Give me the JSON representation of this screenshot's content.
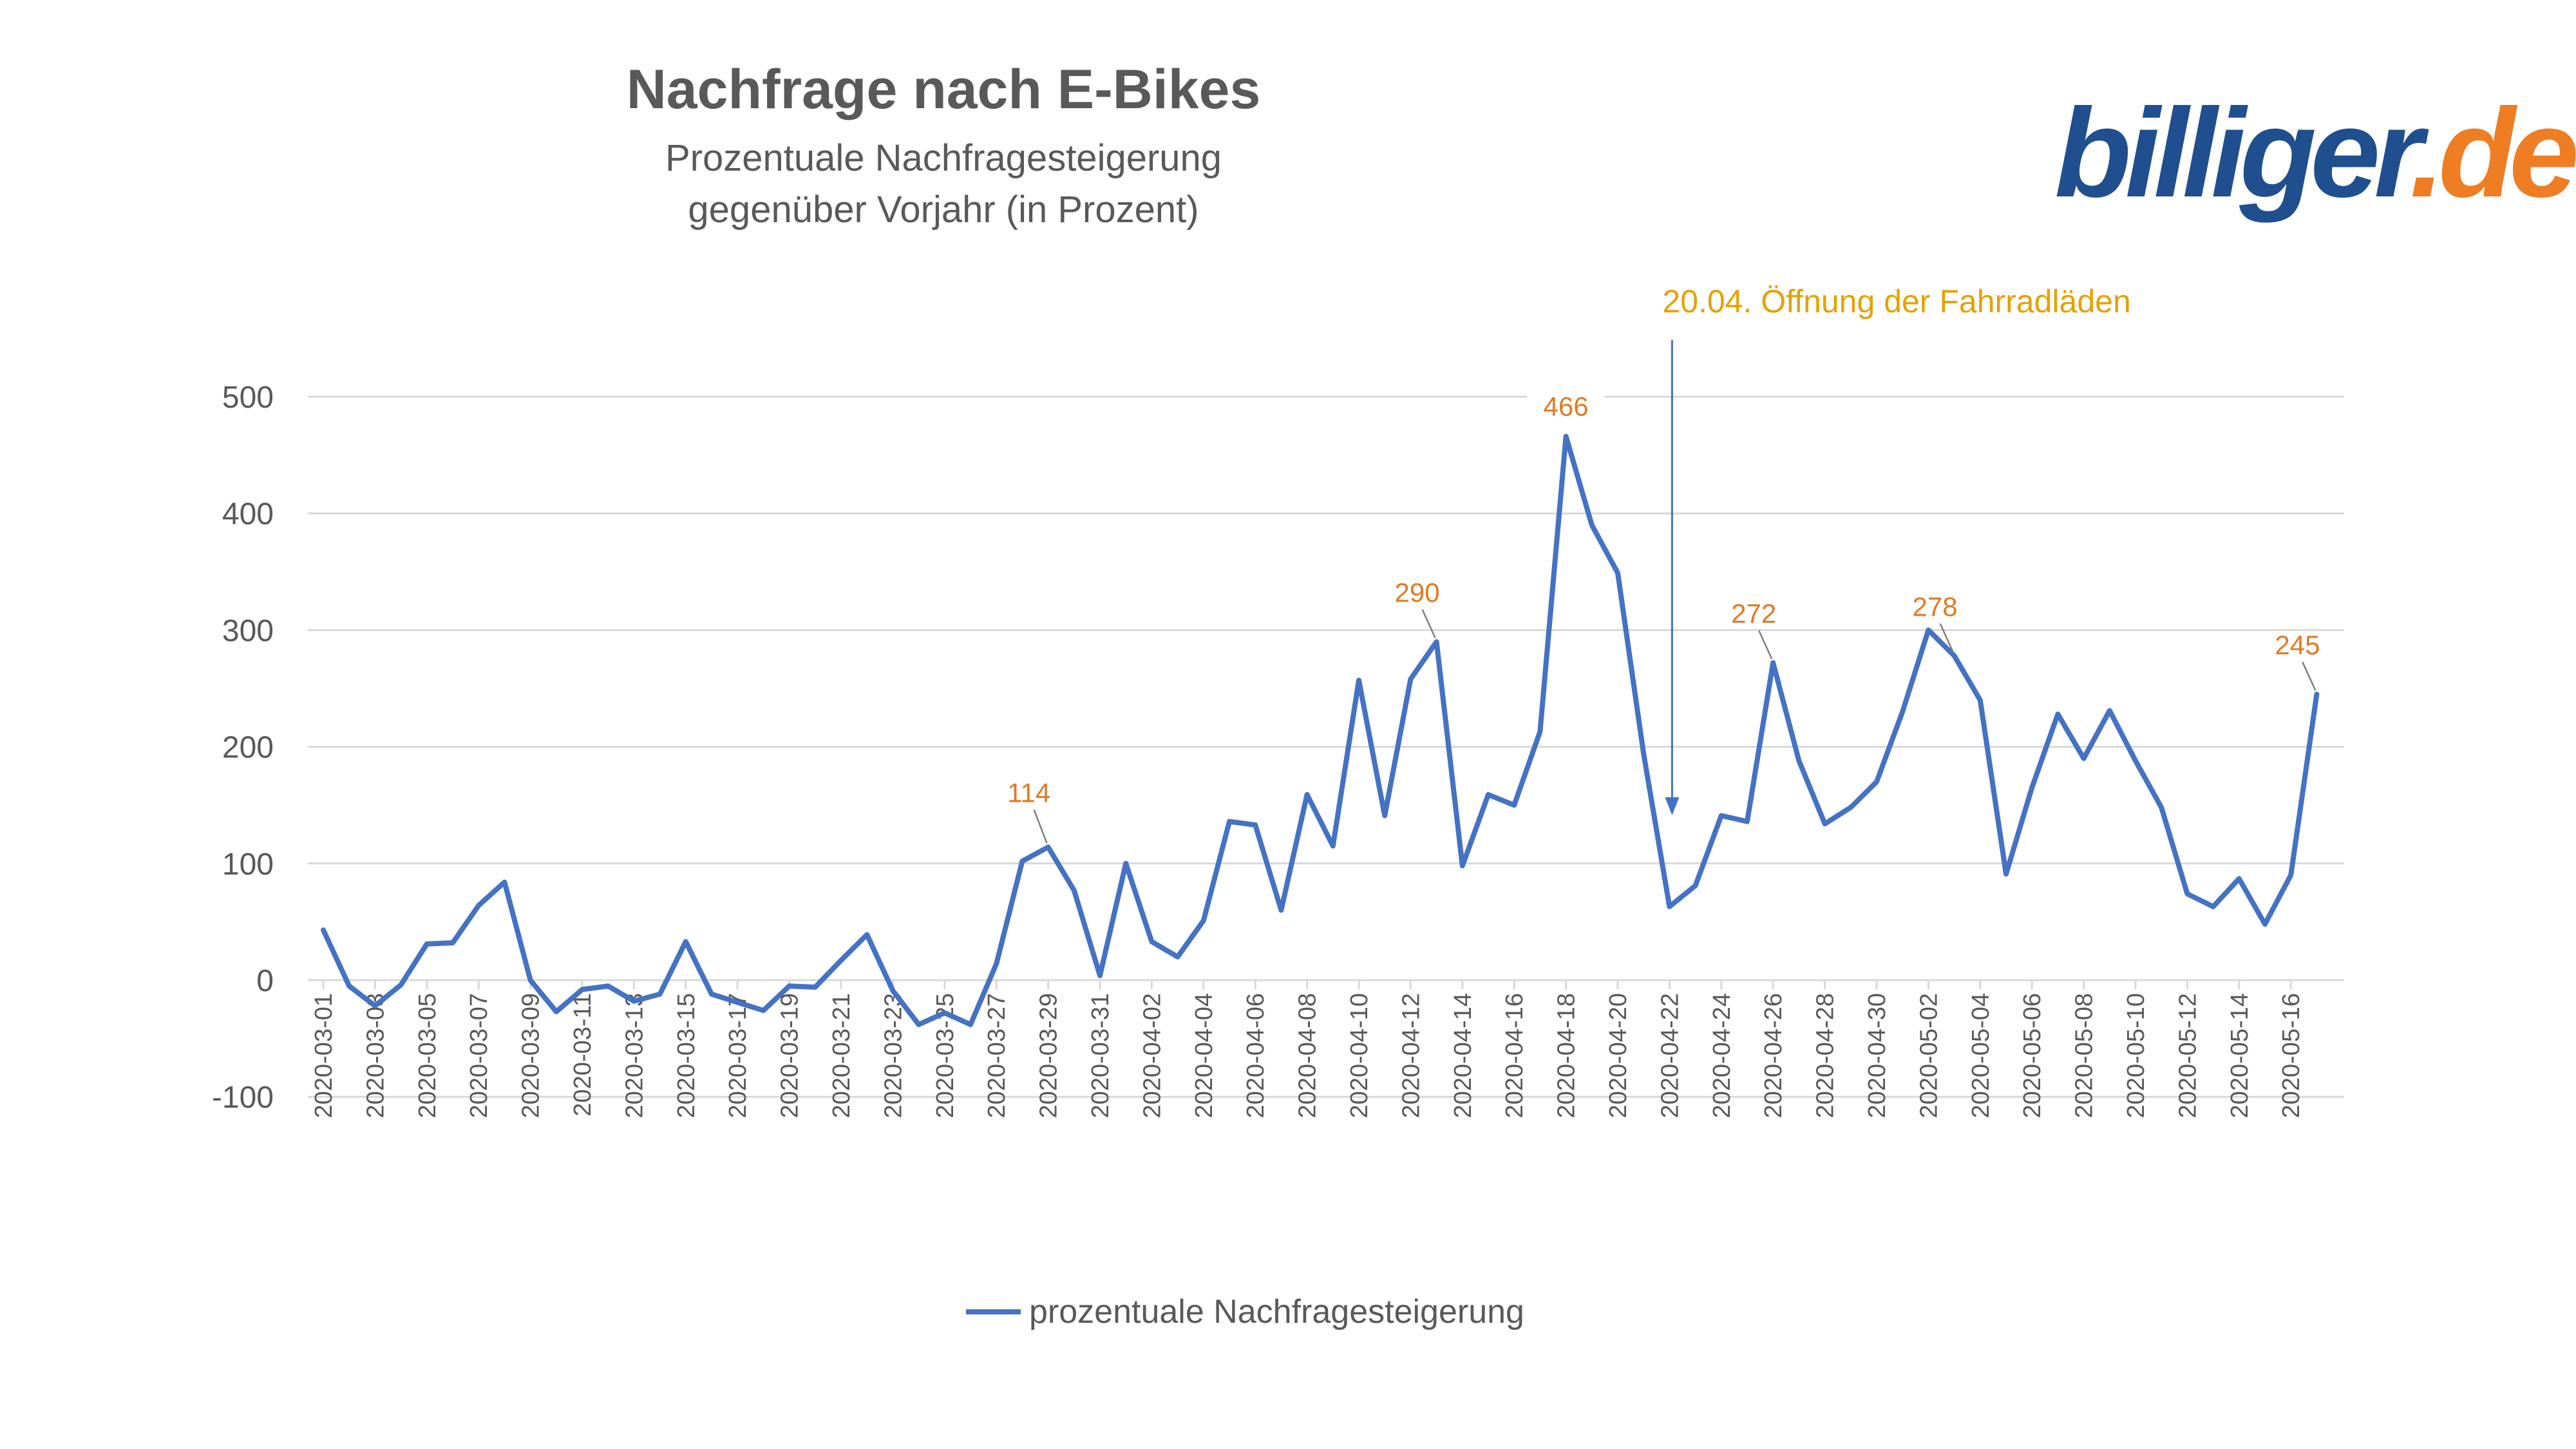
{
  "logo": {
    "part1": "billiger",
    "part2": ".de"
  },
  "colors": {
    "line": "#4472c4",
    "label": "#e07b22",
    "annotation": "#e5a200",
    "arrow": "#4472c4",
    "text": "#595959",
    "grid": "#d9d9d9",
    "logo_blue": "#1f4f8f",
    "logo_orange": "#ee7d23"
  },
  "chart_data": {
    "type": "line",
    "title": "Nachfrage nach E-Bikes",
    "subtitle": [
      "Prozentuale Nachfragesteigerung",
      "gegenüber Vorjahr (in Prozent)"
    ],
    "xlabel": "",
    "ylabel": "",
    "ylim": [
      -100,
      500
    ],
    "yticks": [
      -100,
      0,
      100,
      200,
      300,
      400,
      500
    ],
    "x": [
      "2020-03-01",
      "2020-03-02",
      "2020-03-03",
      "2020-03-04",
      "2020-03-05",
      "2020-03-06",
      "2020-03-07",
      "2020-03-08",
      "2020-03-09",
      "2020-03-10",
      "2020-03-11",
      "2020-03-12",
      "2020-03-13",
      "2020-03-14",
      "2020-03-15",
      "2020-03-16",
      "2020-03-17",
      "2020-03-18",
      "2020-03-19",
      "2020-03-20",
      "2020-03-21",
      "2020-03-22",
      "2020-03-23",
      "2020-03-24",
      "2020-03-25",
      "2020-03-26",
      "2020-03-27",
      "2020-03-28",
      "2020-03-29",
      "2020-03-30",
      "2020-03-31",
      "2020-04-01",
      "2020-04-02",
      "2020-04-03",
      "2020-04-04",
      "2020-04-05",
      "2020-04-06",
      "2020-04-07",
      "2020-04-08",
      "2020-04-09",
      "2020-04-10",
      "2020-04-11",
      "2020-04-12",
      "2020-04-13",
      "2020-04-14",
      "2020-04-15",
      "2020-04-16",
      "2020-04-17",
      "2020-04-18",
      "2020-04-19",
      "2020-04-20",
      "2020-04-21",
      "2020-04-22",
      "2020-04-23",
      "2020-04-24",
      "2020-04-25",
      "2020-04-26",
      "2020-04-27",
      "2020-04-28",
      "2020-04-29",
      "2020-04-30",
      "2020-05-01",
      "2020-05-02",
      "2020-05-03",
      "2020-05-04",
      "2020-05-05",
      "2020-05-06",
      "2020-05-07",
      "2020-05-08",
      "2020-05-09",
      "2020-05-10",
      "2020-05-11",
      "2020-05-12",
      "2020-05-13",
      "2020-05-14",
      "2020-05-15",
      "2020-05-16",
      "2020-05-17"
    ],
    "xtick_labels": [
      "2020-03-01",
      "2020-03-03",
      "2020-03-05",
      "2020-03-07",
      "2020-03-09",
      "2020-03-11",
      "2020-03-13",
      "2020-03-15",
      "2020-03-17",
      "2020-03-19",
      "2020-03-21",
      "2020-03-23",
      "2020-03-25",
      "2020-03-27",
      "2020-03-29",
      "2020-03-31",
      "2020-04-02",
      "2020-04-04",
      "2020-04-06",
      "2020-04-08",
      "2020-04-10",
      "2020-04-12",
      "2020-04-14",
      "2020-04-16",
      "2020-04-18",
      "2020-04-20",
      "2020-04-22",
      "2020-04-24",
      "2020-04-26",
      "2020-04-28",
      "2020-04-30",
      "2020-05-02",
      "2020-05-04",
      "2020-05-06",
      "2020-05-08",
      "2020-05-10",
      "2020-05-12",
      "2020-05-14",
      "2020-05-16"
    ],
    "series": [
      {
        "name": "prozentuale Nachfragesteigerung",
        "values": [
          43,
          -5,
          -22,
          -4,
          31,
          32,
          64,
          84,
          0,
          -27,
          -8,
          -5,
          -18,
          -12,
          33,
          -12,
          -19,
          -26,
          -5,
          -6,
          17,
          39,
          -9,
          -38,
          -28,
          -38,
          14,
          102,
          114,
          77,
          4,
          100,
          33,
          20,
          51,
          136,
          133,
          60,
          159,
          115,
          257,
          141,
          258,
          290,
          98,
          159,
          150,
          213,
          466,
          390,
          349,
          194,
          63,
          81,
          141,
          136,
          272,
          188,
          134,
          148,
          170,
          230,
          300,
          278,
          240,
          91,
          165,
          228,
          190,
          231,
          188,
          148,
          74,
          63,
          87,
          48,
          90,
          245
        ]
      }
    ],
    "data_labels": [
      {
        "x": "2020-03-29",
        "value": 114,
        "text": "114"
      },
      {
        "x": "2020-04-13",
        "value": 290,
        "text": "290"
      },
      {
        "x": "2020-04-18",
        "value": 466,
        "text": "466"
      },
      {
        "x": "2020-04-26",
        "value": 272,
        "text": "272"
      },
      {
        "x": "2020-05-03",
        "value": 278,
        "text": "278"
      },
      {
        "x": "2020-05-17",
        "value": 245,
        "text": "245"
      }
    ],
    "annotation": {
      "x": "2020-04-22",
      "text": "20.04. Öffnung der Fahrradläden"
    },
    "legend": {
      "position": "bottom",
      "entries": [
        "prozentuale Nachfragesteigerung"
      ]
    },
    "grid": true
  }
}
